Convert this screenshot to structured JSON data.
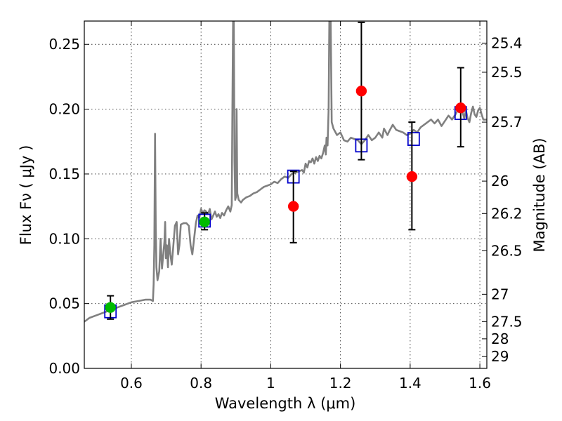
{
  "chart_data": {
    "type": "scatter",
    "xlabel": "Wavelength  λ (μm)",
    "ylabel": "Flux  Fν  ( μJy )",
    "ylabel_right": "Magnitude (AB)",
    "xlim": [
      0.465,
      1.62
    ],
    "ylim": [
      0,
      0.268
    ],
    "grid": true,
    "x_ticks": [
      0.6,
      0.8,
      1.0,
      1.2,
      1.4,
      1.6
    ],
    "x_tick_labels": [
      "0.6",
      "0.8",
      "1",
      "1.2",
      "1.4",
      "1.6"
    ],
    "y_ticks": [
      0.0,
      0.05,
      0.1,
      0.15,
      0.2,
      0.25
    ],
    "y_tick_labels": [
      "0.00",
      "0.05",
      "0.10",
      "0.15",
      "0.20",
      "0.25"
    ],
    "right_ticks": [
      {
        "label": "25.4",
        "flux": 0.251
      },
      {
        "label": "25.5",
        "flux": 0.2285
      },
      {
        "label": "25.7",
        "flux": 0.19
      },
      {
        "label": "26",
        "flux": 0.1445
      },
      {
        "label": "26.2",
        "flux": 0.1195
      },
      {
        "label": "26.5",
        "flux": 0.0907
      },
      {
        "label": "27",
        "flux": 0.0572
      },
      {
        "label": "27.5",
        "flux": 0.0361
      },
      {
        "label": "28",
        "flux": 0.0228
      },
      {
        "label": "29",
        "flux": 0.0091
      }
    ],
    "series": [
      {
        "name": "model spectrum",
        "kind": "line",
        "color": "#808080",
        "points": [
          [
            0.465,
            0.036
          ],
          [
            0.48,
            0.039
          ],
          [
            0.5,
            0.041
          ],
          [
            0.52,
            0.043
          ],
          [
            0.54,
            0.045
          ],
          [
            0.56,
            0.047
          ],
          [
            0.58,
            0.049
          ],
          [
            0.6,
            0.051
          ],
          [
            0.62,
            0.052
          ],
          [
            0.64,
            0.053
          ],
          [
            0.655,
            0.053
          ],
          [
            0.662,
            0.052
          ],
          [
            0.664,
            0.065
          ],
          [
            0.666,
            0.095
          ],
          [
            0.668,
            0.181
          ],
          [
            0.67,
            0.11
          ],
          [
            0.672,
            0.078
          ],
          [
            0.675,
            0.068
          ],
          [
            0.68,
            0.075
          ],
          [
            0.684,
            0.1
          ],
          [
            0.688,
            0.077
          ],
          [
            0.692,
            0.089
          ],
          [
            0.695,
            0.098
          ],
          [
            0.697,
            0.113
          ],
          [
            0.699,
            0.085
          ],
          [
            0.702,
            0.095
          ],
          [
            0.705,
            0.078
          ],
          [
            0.708,
            0.1
          ],
          [
            0.712,
            0.088
          ],
          [
            0.716,
            0.08
          ],
          [
            0.72,
            0.093
          ],
          [
            0.725,
            0.11
          ],
          [
            0.73,
            0.113
          ],
          [
            0.734,
            0.088
          ],
          [
            0.738,
            0.095
          ],
          [
            0.742,
            0.111
          ],
          [
            0.75,
            0.112
          ],
          [
            0.758,
            0.112
          ],
          [
            0.765,
            0.11
          ],
          [
            0.77,
            0.095
          ],
          [
            0.775,
            0.088
          ],
          [
            0.78,
            0.1
          ],
          [
            0.785,
            0.112
          ],
          [
            0.79,
            0.118
          ],
          [
            0.795,
            0.116
          ],
          [
            0.8,
            0.123
          ],
          [
            0.805,
            0.12
          ],
          [
            0.81,
            0.122
          ],
          [
            0.815,
            0.121
          ],
          [
            0.82,
            0.119
          ],
          [
            0.825,
            0.123
          ],
          [
            0.83,
            0.115
          ],
          [
            0.835,
            0.118
          ],
          [
            0.84,
            0.121
          ],
          [
            0.845,
            0.117
          ],
          [
            0.85,
            0.119
          ],
          [
            0.855,
            0.116
          ],
          [
            0.86,
            0.12
          ],
          [
            0.866,
            0.118
          ],
          [
            0.872,
            0.122
          ],
          [
            0.878,
            0.125
          ],
          [
            0.884,
            0.121
          ],
          [
            0.888,
            0.126
          ],
          [
            0.89,
            0.2
          ],
          [
            0.892,
            0.268
          ],
          [
            0.894,
            0.268
          ],
          [
            0.896,
            0.16
          ],
          [
            0.898,
            0.13
          ],
          [
            0.9,
            0.132
          ],
          [
            0.902,
            0.2
          ],
          [
            0.904,
            0.135
          ],
          [
            0.908,
            0.13
          ],
          [
            0.915,
            0.128
          ],
          [
            0.92,
            0.13
          ],
          [
            0.93,
            0.132
          ],
          [
            0.94,
            0.133
          ],
          [
            0.95,
            0.135
          ],
          [
            0.96,
            0.136
          ],
          [
            0.97,
            0.138
          ],
          [
            0.98,
            0.14
          ],
          [
            0.99,
            0.141
          ],
          [
            1.0,
            0.142
          ],
          [
            1.01,
            0.144
          ],
          [
            1.02,
            0.143
          ],
          [
            1.03,
            0.146
          ],
          [
            1.04,
            0.148
          ],
          [
            1.05,
            0.147
          ],
          [
            1.06,
            0.15
          ],
          [
            1.07,
            0.151
          ],
          [
            1.08,
            0.152
          ],
          [
            1.09,
            0.153
          ],
          [
            1.095,
            0.151
          ],
          [
            1.1,
            0.158
          ],
          [
            1.105,
            0.155
          ],
          [
            1.11,
            0.16
          ],
          [
            1.115,
            0.159
          ],
          [
            1.12,
            0.162
          ],
          [
            1.125,
            0.158
          ],
          [
            1.13,
            0.163
          ],
          [
            1.135,
            0.16
          ],
          [
            1.14,
            0.164
          ],
          [
            1.145,
            0.162
          ],
          [
            1.15,
            0.166
          ],
          [
            1.155,
            0.172
          ],
          [
            1.158,
            0.165
          ],
          [
            1.16,
            0.178
          ],
          [
            1.163,
            0.172
          ],
          [
            1.166,
            0.2
          ],
          [
            1.168,
            0.268
          ],
          [
            1.172,
            0.268
          ],
          [
            1.175,
            0.19
          ],
          [
            1.18,
            0.185
          ],
          [
            1.19,
            0.18
          ],
          [
            1.2,
            0.182
          ],
          [
            1.21,
            0.176
          ],
          [
            1.22,
            0.175
          ],
          [
            1.23,
            0.178
          ],
          [
            1.24,
            0.177
          ],
          [
            1.25,
            0.176
          ],
          [
            1.26,
            0.173
          ],
          [
            1.27,
            0.176
          ],
          [
            1.28,
            0.18
          ],
          [
            1.29,
            0.176
          ],
          [
            1.3,
            0.178
          ],
          [
            1.31,
            0.182
          ],
          [
            1.32,
            0.178
          ],
          [
            1.325,
            0.185
          ],
          [
            1.335,
            0.18
          ],
          [
            1.34,
            0.183
          ],
          [
            1.35,
            0.188
          ],
          [
            1.36,
            0.184
          ],
          [
            1.37,
            0.183
          ],
          [
            1.38,
            0.182
          ],
          [
            1.39,
            0.18
          ],
          [
            1.4,
            0.181
          ],
          [
            1.41,
            0.184
          ],
          [
            1.42,
            0.182
          ],
          [
            1.43,
            0.186
          ],
          [
            1.44,
            0.188
          ],
          [
            1.45,
            0.19
          ],
          [
            1.46,
            0.192
          ],
          [
            1.47,
            0.189
          ],
          [
            1.48,
            0.192
          ],
          [
            1.49,
            0.187
          ],
          [
            1.5,
            0.191
          ],
          [
            1.51,
            0.195
          ],
          [
            1.52,
            0.192
          ],
          [
            1.53,
            0.196
          ],
          [
            1.54,
            0.201
          ],
          [
            1.55,
            0.198
          ],
          [
            1.555,
            0.193
          ],
          [
            1.56,
            0.199
          ],
          [
            1.565,
            0.193
          ],
          [
            1.57,
            0.19
          ],
          [
            1.575,
            0.197
          ],
          [
            1.58,
            0.202
          ],
          [
            1.585,
            0.196
          ],
          [
            1.59,
            0.194
          ],
          [
            1.595,
            0.199
          ],
          [
            1.6,
            0.201
          ],
          [
            1.605,
            0.196
          ],
          [
            1.61,
            0.192
          ],
          [
            1.62,
            0.192
          ]
        ]
      },
      {
        "name": "model photometry",
        "kind": "open-square",
        "color": "#0000cc",
        "points": [
          [
            0.54,
            0.044
          ],
          [
            0.81,
            0.114
          ],
          [
            1.065,
            0.148
          ],
          [
            1.26,
            0.172
          ],
          [
            1.41,
            0.177
          ],
          [
            1.545,
            0.197
          ]
        ]
      },
      {
        "name": "observed (green)",
        "kind": "filled-circle",
        "color": "#00bb00",
        "points": [
          {
            "x": 0.54,
            "y": 0.047,
            "err_low": 0.038,
            "err_high": 0.056
          },
          {
            "x": 0.81,
            "y": 0.113,
            "err_low": 0.107,
            "err_high": 0.12
          }
        ]
      },
      {
        "name": "observed (red)",
        "kind": "filled-circle",
        "color": "#ff0000",
        "points": [
          {
            "x": 1.065,
            "y": 0.125,
            "err_low": 0.097,
            "err_high": 0.152
          },
          {
            "x": 1.26,
            "y": 0.214,
            "err_low": 0.161,
            "err_high": 0.267
          },
          {
            "x": 1.405,
            "y": 0.148,
            "err_low": 0.107,
            "err_high": 0.19
          },
          {
            "x": 1.545,
            "y": 0.201,
            "err_low": 0.171,
            "err_high": 0.232
          }
        ]
      }
    ]
  }
}
